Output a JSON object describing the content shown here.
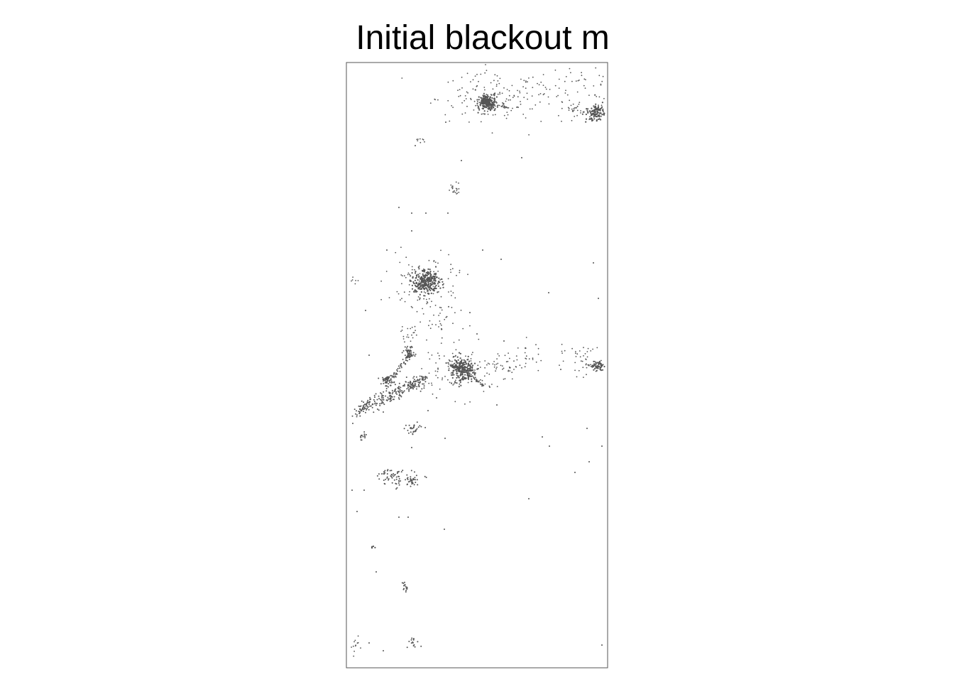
{
  "map": {
    "title": "Initial blackout m",
    "marker_color": "#555555",
    "frame_color": "#555555",
    "background": "#ffffff"
  }
}
